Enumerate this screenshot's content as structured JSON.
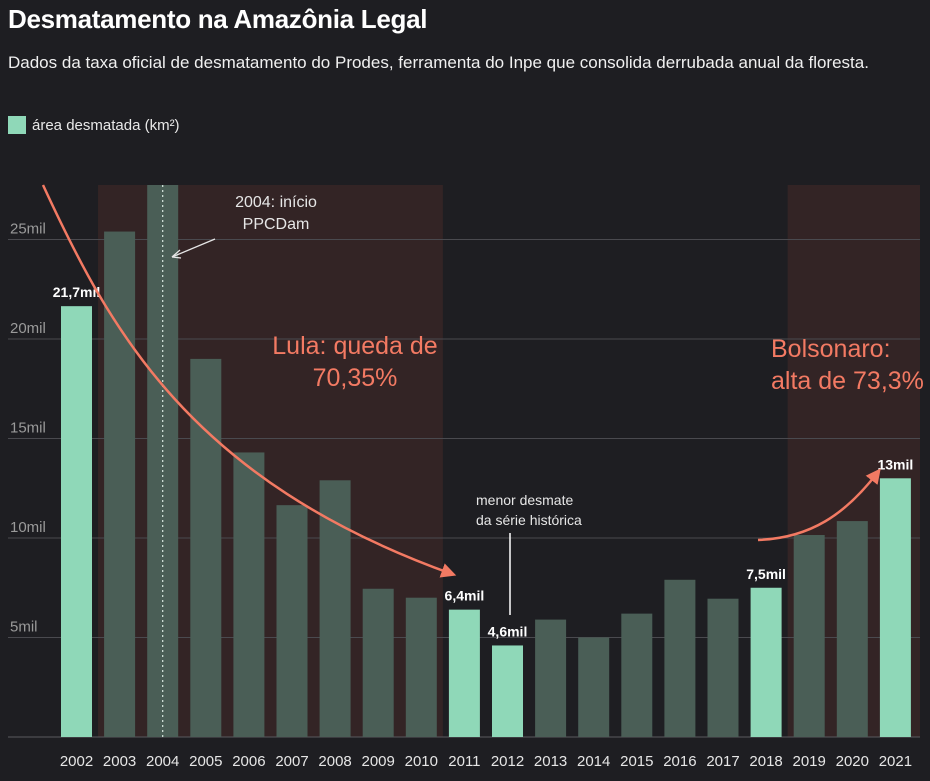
{
  "header": {
    "title": "Desmatamento na Amazônia Legal",
    "subtitle": "Dados da taxa oficial de desmatamento do Prodes, ferramenta do Inpe que consolida derrubada anual da floresta."
  },
  "legend": {
    "label": "área desmatada (km²)"
  },
  "colors": {
    "highlight": "#8fd8b8",
    "regular": "#4a5e56",
    "accent": "#f37a63",
    "band": "#332425",
    "background": "#1e1e22"
  },
  "chart_data": {
    "type": "bar",
    "title": "Desmatamento na Amazônia Legal",
    "ylabel": "área desmatada (km²)",
    "ylim": [
      0,
      28000
    ],
    "yticks": [
      {
        "value": 5000,
        "label": "5mil"
      },
      {
        "value": 10000,
        "label": "10mil"
      },
      {
        "value": 15000,
        "label": "15mil"
      },
      {
        "value": 20000,
        "label": "20mil"
      },
      {
        "value": 25000,
        "label": "25mil"
      }
    ],
    "categories": [
      "2002",
      "2003",
      "2004",
      "2005",
      "2006",
      "2007",
      "2008",
      "2009",
      "2010",
      "2011",
      "2012",
      "2013",
      "2014",
      "2015",
      "2016",
      "2017",
      "2018",
      "2019",
      "2020",
      "2021"
    ],
    "values": [
      21650,
      25400,
      27800,
      19000,
      14300,
      11650,
      12900,
      7450,
      7000,
      6400,
      4600,
      5900,
      5000,
      6200,
      7900,
      6950,
      7500,
      10150,
      10850,
      13000
    ],
    "highlighted": [
      "2002",
      "2011",
      "2012",
      "2018",
      "2021"
    ],
    "data_labels": [
      {
        "category": "2002",
        "text": "21,7mil"
      },
      {
        "category": "2011",
        "text": "6,4mil"
      },
      {
        "category": "2012",
        "text": "4,6mil"
      },
      {
        "category": "2018",
        "text": "7,5mil"
      },
      {
        "category": "2021",
        "text": "13mil"
      }
    ],
    "shaded_periods": [
      {
        "from": "2003",
        "to": "2010",
        "label": "Lula: queda de 70,35%"
      },
      {
        "from": "2019",
        "to": "2021",
        "label": "Bolsonaro: alta de 73,3%"
      }
    ],
    "annotations": {
      "ppcdam": "2004: início PPCDam",
      "ppcdam_lines": [
        "2004: início",
        "PPCDam"
      ],
      "lula_lines": [
        "Lula: queda de",
        "70,35%"
      ],
      "bolsonaro_lines": [
        "Bolsonaro:",
        "alta de 73,3%"
      ],
      "menor_lines": [
        "menor desmate",
        "da série histórica"
      ]
    }
  }
}
